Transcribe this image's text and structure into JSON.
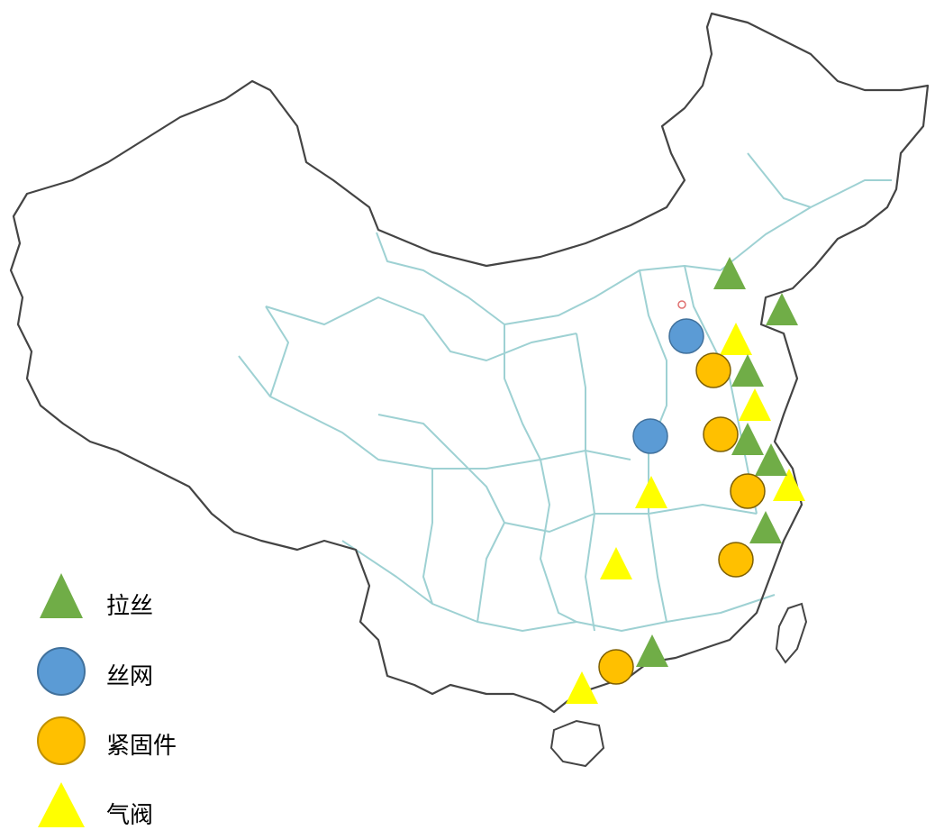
{
  "colors": {
    "border": "#444444",
    "province_border": "#9ed1d3",
    "lashi": "#70ad47",
    "siwang": "#5b9bd5",
    "jingujian": "#ffc000",
    "qifa": "#ffff00",
    "marker_stroke": "#7f6000"
  },
  "legend": [
    {
      "key": "lashi",
      "label": "拉丝",
      "icon": "green-triangle-icon"
    },
    {
      "key": "siwang",
      "label": "丝网",
      "icon": "blue-circle-icon"
    },
    {
      "key": "jingujian",
      "label": "紧固件",
      "icon": "orange-circle-icon"
    },
    {
      "key": "qifa",
      "label": "气阀",
      "icon": "yellow-triangle-icon"
    }
  ]
}
